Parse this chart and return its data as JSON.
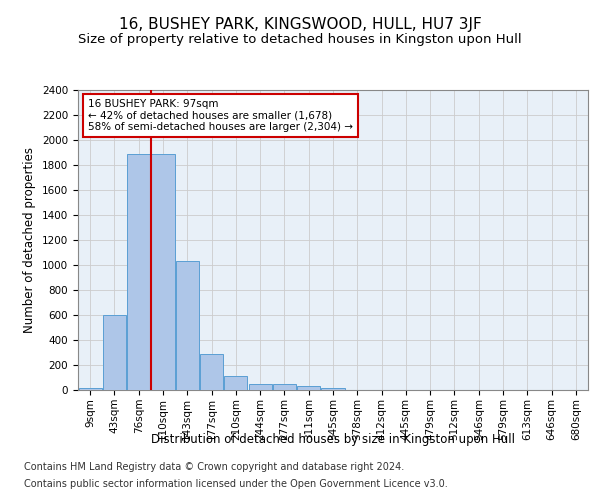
{
  "title": "16, BUSHEY PARK, KINGSWOOD, HULL, HU7 3JF",
  "subtitle": "Size of property relative to detached houses in Kingston upon Hull",
  "xlabel": "Distribution of detached houses by size in Kingston upon Hull",
  "ylabel": "Number of detached properties",
  "footer_line1": "Contains HM Land Registry data © Crown copyright and database right 2024.",
  "footer_line2": "Contains public sector information licensed under the Open Government Licence v3.0.",
  "bin_labels": [
    "9sqm",
    "43sqm",
    "76sqm",
    "110sqm",
    "143sqm",
    "177sqm",
    "210sqm",
    "244sqm",
    "277sqm",
    "311sqm",
    "345sqm",
    "378sqm",
    "412sqm",
    "445sqm",
    "479sqm",
    "512sqm",
    "546sqm",
    "579sqm",
    "613sqm",
    "646sqm",
    "680sqm"
  ],
  "bar_values": [
    15,
    600,
    1885,
    1885,
    1030,
    290,
    110,
    50,
    45,
    30,
    20,
    0,
    0,
    0,
    0,
    0,
    0,
    0,
    0,
    0,
    0
  ],
  "bar_color": "#aec6e8",
  "bar_edge_color": "#5a9fd4",
  "vline_bin_index": 2,
  "annotation_text_line1": "16 BUSHEY PARK: 97sqm",
  "annotation_text_line2": "← 42% of detached houses are smaller (1,678)",
  "annotation_text_line3": "58% of semi-detached houses are larger (2,304) →",
  "annotation_box_color": "#ffffff",
  "annotation_box_edge": "#cc0000",
  "vline_color": "#cc0000",
  "ylim": [
    0,
    2400
  ],
  "yticks": [
    0,
    200,
    400,
    600,
    800,
    1000,
    1200,
    1400,
    1600,
    1800,
    2000,
    2200,
    2400
  ],
  "grid_color": "#cccccc",
  "bg_color": "#e8f0f8",
  "title_fontsize": 11,
  "subtitle_fontsize": 9.5,
  "axis_label_fontsize": 8.5,
  "tick_fontsize": 7.5,
  "footer_fontsize": 7
}
